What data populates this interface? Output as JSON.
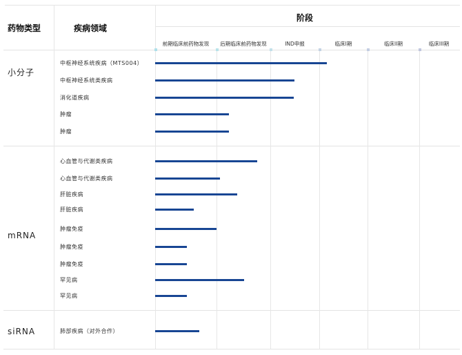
{
  "chart_data": {
    "type": "bar",
    "orientation": "horizontal",
    "headers": {
      "type": "药物类型",
      "area": "疾病领域",
      "stage": "阶段"
    },
    "stages": [
      "前期临床前药物发现",
      "后期临床前药物发现",
      "IND申报",
      "临床I期",
      "临床II期",
      "临床III期"
    ],
    "xlim": [
      0,
      6
    ],
    "bar_color": "#174593",
    "dot_colors": [
      "#aee0ea",
      "#b8e3ea",
      "#c2e0ea",
      "#c3d2e4",
      "#c3cde2",
      "#c0c6de"
    ],
    "groups": [
      {
        "type": "小分子",
        "rows": [
          {
            "area": "中枢神经系统疾病（MTS004）",
            "value": 3.16
          },
          {
            "area": "中枢神经系统类疾病",
            "value": 2.49
          },
          {
            "area": "消化道疾病",
            "value": 2.48
          },
          {
            "area": "肿瘤",
            "value": 1.23
          },
          {
            "area": "肿瘤",
            "value": 1.23
          }
        ]
      },
      {
        "type": "mRNA",
        "rows": [
          {
            "area": "心血管与代谢类疾病",
            "value": 1.76
          },
          {
            "area": "心血管与代谢类疾病",
            "value": 1.06
          },
          {
            "area": "肝脏疾病",
            "value": 1.38
          },
          {
            "area": "肝脏疾病",
            "value": 0.63
          },
          {
            "area": "肿瘤免疫",
            "value": 1.0
          },
          {
            "area": "肿瘤免疫",
            "value": 0.52
          },
          {
            "area": "肿瘤免疫",
            "value": 0.52
          },
          {
            "area": "罕见病",
            "value": 1.51
          },
          {
            "area": "罕见病",
            "value": 0.52
          }
        ]
      },
      {
        "type": "siRNA",
        "rows": [
          {
            "area": "肺部疾病（对外合作）",
            "value": 0.72
          }
        ]
      }
    ]
  }
}
